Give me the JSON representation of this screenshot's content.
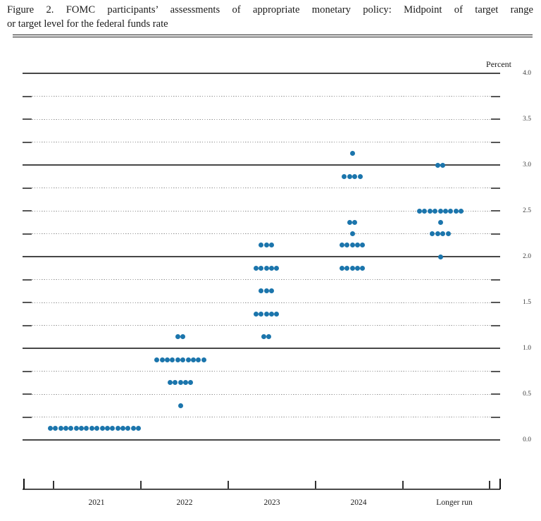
{
  "title": {
    "line1": "Figure 2.  FOMC participants’ assessments of appropriate monetary policy: Midpoint of target range",
    "line2": "or target level for the federal funds rate"
  },
  "chart_data": {
    "type": "scatter",
    "subtype": "fomc-dot-plot",
    "title": "FOMC participants’ assessments of appropriate monetary policy: Midpoint of target range or target level for the federal funds rate",
    "unit_label": "Percent",
    "categories": [
      "2021",
      "2022",
      "2023",
      "2024",
      "Longer run"
    ],
    "y_axis": {
      "min": 0.0,
      "max": 4.0,
      "gridline_interval": 0.25,
      "solid_line_values": [
        0.0,
        1.0,
        2.0,
        3.0,
        4.0
      ],
      "tick_labels": [
        "4.0",
        "3.5",
        "3.0",
        "2.5",
        "2.0",
        "1.5",
        "1.0",
        "0.5",
        "0.0"
      ],
      "tick_label_values": [
        4.0,
        3.5,
        3.0,
        2.5,
        2.0,
        1.5,
        1.0,
        0.5,
        0.0
      ]
    },
    "grid": "dotted-quarters-solid-integers",
    "legend_position": "none",
    "series": [
      {
        "category": "2021",
        "dots": [
          {
            "rate": 0.125,
            "count": 18
          }
        ]
      },
      {
        "category": "2022",
        "dots": [
          {
            "rate": 1.125,
            "count": 2
          },
          {
            "rate": 0.875,
            "count": 10
          },
          {
            "rate": 0.625,
            "count": 5
          },
          {
            "rate": 0.375,
            "count": 1
          }
        ]
      },
      {
        "category": "2023",
        "dots": [
          {
            "rate": 2.125,
            "count": 3
          },
          {
            "rate": 1.875,
            "count": 5
          },
          {
            "rate": 1.625,
            "count": 3
          },
          {
            "rate": 1.375,
            "count": 5
          },
          {
            "rate": 1.125,
            "count": 2
          }
        ]
      },
      {
        "category": "2024",
        "dots": [
          {
            "rate": 3.125,
            "count": 1
          },
          {
            "rate": 2.875,
            "count": 4
          },
          {
            "rate": 2.375,
            "count": 2
          },
          {
            "rate": 2.25,
            "count": 1
          },
          {
            "rate": 2.125,
            "count": 5
          },
          {
            "rate": 1.875,
            "count": 5
          }
        ]
      },
      {
        "category": "Longer run",
        "dots": [
          {
            "rate": 3.0,
            "count": 2
          },
          {
            "rate": 2.5,
            "count": 9
          },
          {
            "rate": 2.375,
            "count": 1
          },
          {
            "rate": 2.25,
            "count": 4
          },
          {
            "rate": 2.0,
            "count": 1
          }
        ]
      }
    ],
    "colors": {
      "dot": "#1b75ac",
      "solid_line": "#474747",
      "dotted_line": "#8f8f8f",
      "axis": "#4a4a4a",
      "text": "#1a1a1a"
    }
  }
}
